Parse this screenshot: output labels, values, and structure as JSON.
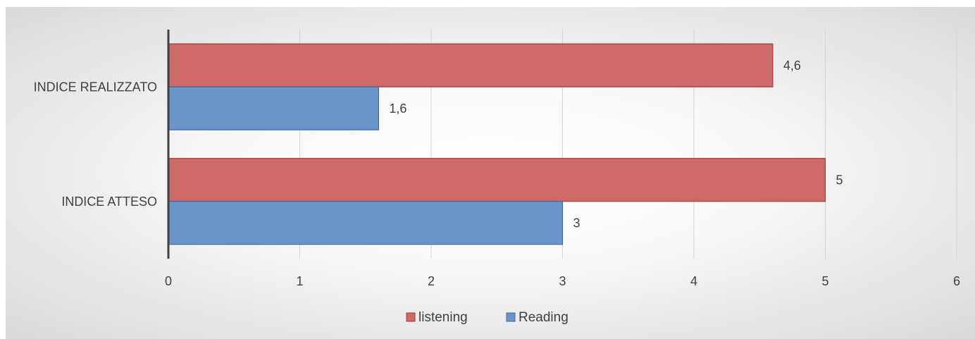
{
  "chart_data": {
    "type": "bar",
    "orientation": "horizontal",
    "categories": [
      "INDICE REALIZZATO",
      "INDICE ATTESO"
    ],
    "series": [
      {
        "name": "listening",
        "values": [
          4.6,
          5
        ],
        "labels": [
          "4,6",
          "5"
        ],
        "color": "#cd6967"
      },
      {
        "name": "Reading",
        "values": [
          1.6,
          3
        ],
        "labels": [
          "1,6",
          "3"
        ],
        "color": "#6a95c9"
      }
    ],
    "xlim": [
      0,
      6
    ],
    "xticks": [
      0,
      1,
      2,
      3,
      4,
      5,
      6
    ],
    "xtick_labels": [
      "0",
      "1",
      "2",
      "3",
      "4",
      "5",
      "6"
    ],
    "grid": true,
    "legend_position": "bottom",
    "title": "",
    "xlabel": "",
    "ylabel": ""
  }
}
